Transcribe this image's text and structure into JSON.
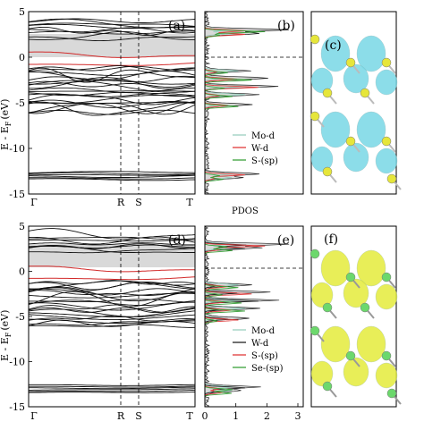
{
  "panels": {
    "a": {
      "label": "(a)"
    },
    "b": {
      "label": "(b)",
      "legend": [
        "Mo-d",
        "W-d",
        "S-(sp)"
      ]
    },
    "c": {
      "label": "(c)"
    },
    "d": {
      "label": "(d)"
    },
    "e": {
      "label": "(e)",
      "legend": [
        "Mo-d",
        "W-d",
        "S-(sp)",
        "Se-(sp)"
      ]
    },
    "f": {
      "label": "(f)"
    }
  },
  "chart_data": [
    {
      "type": "line",
      "panel": "a",
      "ylabel": "E - E",
      "ylabel_sub": "F",
      "ylabel_unit": "(eV)",
      "ylim": [
        -15,
        5
      ],
      "yticks": [
        5,
        0,
        -5,
        -10,
        -15
      ],
      "xticks": [
        "Γ",
        "R",
        "S",
        "T"
      ],
      "gap_shaded": [
        0,
        3
      ],
      "core_band_range": [
        -12.6,
        -13.4
      ]
    },
    {
      "type": "line",
      "panel": "b",
      "xlabel": "PDOS",
      "ylim": [
        -15,
        5
      ],
      "series": [
        {
          "name": "Mo-d",
          "color": "#9ad0c0"
        },
        {
          "name": "W-d",
          "color": "#e03a3a"
        },
        {
          "name": "S-(sp)",
          "color": "#3aa03a"
        }
      ]
    },
    {
      "type": "line",
      "panel": "d",
      "ylabel": "E - E",
      "ylabel_sub": "F",
      "ylabel_unit": "(eV)",
      "ylim": [
        -15,
        5
      ],
      "yticks": [
        5,
        0,
        -5,
        -10,
        -15
      ],
      "xticks": [
        "Γ",
        "R",
        "S",
        "T"
      ],
      "gap_shaded": [
        0,
        3
      ],
      "core_band_range": [
        -12.6,
        -13.4
      ]
    },
    {
      "type": "line",
      "panel": "e",
      "ylim": [
        -15,
        5
      ],
      "xlim": [
        0,
        3
      ],
      "xticks": [
        "0",
        "1",
        "2",
        "3"
      ],
      "series": [
        {
          "name": "Mo-d",
          "color": "#9ad0c0"
        },
        {
          "name": "W-d",
          "color": "#222222"
        },
        {
          "name": "S-(sp)",
          "color": "#e03a3a"
        },
        {
          "name": "Se-(sp)",
          "color": "#3aa03a"
        }
      ]
    }
  ],
  "colors": {
    "band": "#111111",
    "highlight_band": "#d22a2a",
    "gap_fill": "#d9d9d9",
    "orbital_cyan": "#78d8e6",
    "orbital_yellow": "#e4ec3c",
    "atom_yellow": "#e6e63a",
    "atom_green": "#6cd86c"
  }
}
